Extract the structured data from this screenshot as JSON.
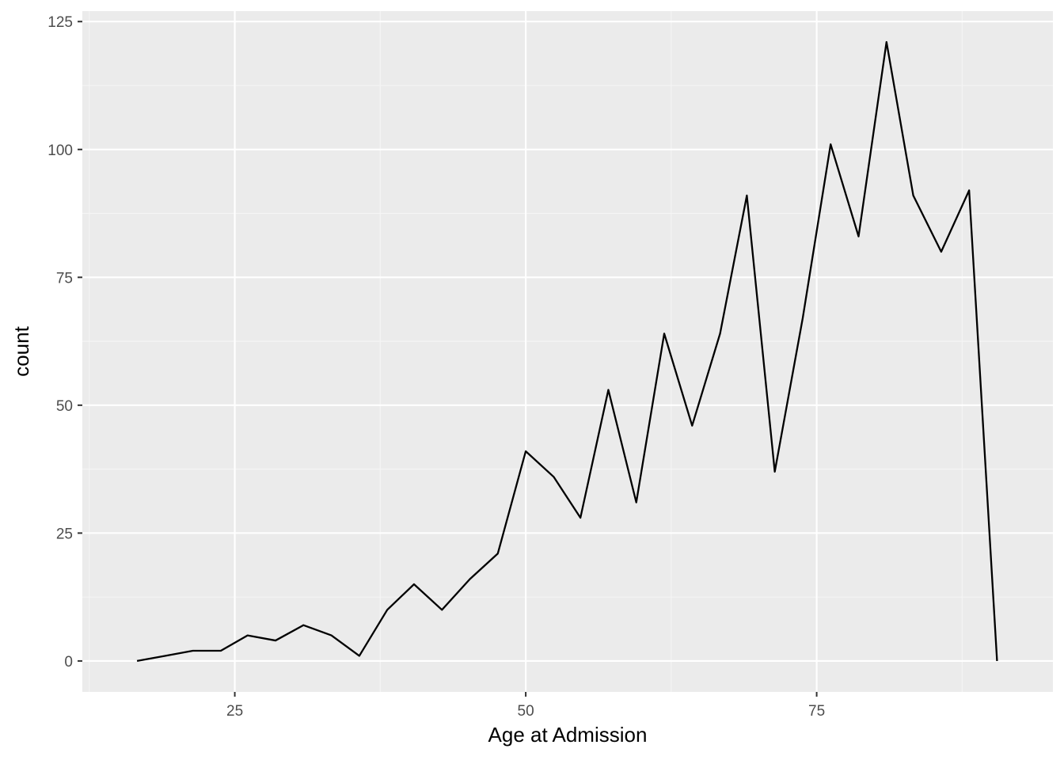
{
  "chart_data": {
    "type": "line",
    "title": "",
    "xlabel": "Age at Admission",
    "ylabel": "count",
    "xlim": [
      11.9,
      95.3
    ],
    "ylim": [
      -6.05,
      127.05
    ],
    "x_ticks": [
      25,
      50,
      75
    ],
    "y_ticks": [
      0,
      25,
      50,
      75,
      100,
      125
    ],
    "x_tick_labels": [
      "25",
      "50",
      "75"
    ],
    "y_tick_labels": [
      "0",
      "25",
      "50",
      "75",
      "100",
      "125"
    ],
    "grid": true,
    "legend": "none",
    "series": [
      {
        "color": "#000000",
        "x": [
          16.6,
          19.0,
          21.4,
          23.8,
          26.1,
          28.5,
          30.9,
          33.3,
          35.7,
          38.1,
          40.4,
          42.8,
          45.2,
          47.6,
          50.0,
          52.4,
          54.7,
          57.1,
          59.5,
          61.9,
          64.3,
          66.7,
          69.0,
          71.4,
          73.8,
          76.2,
          78.6,
          81.0,
          83.3,
          85.7,
          88.1,
          90.5
        ],
        "y": [
          0,
          1,
          2,
          2,
          5,
          4,
          7,
          5,
          1,
          10,
          15,
          10,
          16,
          21,
          41,
          36,
          28,
          53,
          31,
          64,
          46,
          64,
          91,
          37,
          67,
          101,
          83,
          121,
          91,
          80,
          92,
          0
        ]
      }
    ]
  },
  "colors": {
    "panel_background": "#ebebeb",
    "grid_major": "#ffffff",
    "grid_minor": "#f5f5f5",
    "line": "#000000",
    "tick_text": "#4d4d4d",
    "tick_mark": "#333333"
  }
}
